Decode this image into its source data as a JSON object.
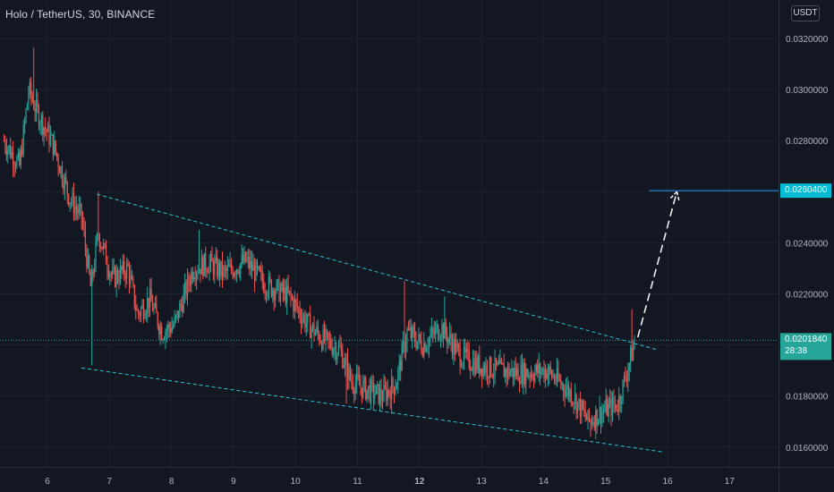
{
  "header": {
    "title": "Holo / TetherUS, 30, BINANCE"
  },
  "currency_button": "USDT",
  "colors": {
    "background": "#131722",
    "grid": "#1e222d",
    "axis_text": "#b2b5be",
    "up_candle": "#26a69a",
    "down_candle": "#ef5350",
    "trendline": "#26c6da",
    "target_line": "#2196f3",
    "target_label_bg": "#00bcd4",
    "current_label_bg": "#26a69a",
    "projection_arrow": "#ffffff"
  },
  "price_labels": {
    "target": "0.0260400",
    "current_price": "0.0201840",
    "countdown": "28:38"
  },
  "chart_data": {
    "type": "candlestick",
    "x_tick_labels": [
      "6",
      "7",
      "8",
      "9",
      "10",
      "11",
      "12",
      "13",
      "14",
      "15",
      "16",
      "17"
    ],
    "y_tick_labels": [
      "0.0160000",
      "0.0180000",
      "0.0200000",
      "0.0220000",
      "0.0240000",
      "0.0260000",
      "0.0280000",
      "0.0300000",
      "0.0320000"
    ],
    "ylim": [
      0.01485,
      0.03345
    ],
    "xlim": [
      5.27,
      17.95
    ],
    "grid": true,
    "price_path": [
      [
        5.3,
        0.028
      ],
      [
        5.55,
        0.027
      ],
      [
        5.7,
        0.03
      ],
      [
        5.82,
        0.0292
      ],
      [
        6.1,
        0.0278
      ],
      [
        6.35,
        0.0258
      ],
      [
        6.55,
        0.025
      ],
      [
        6.7,
        0.0222
      ],
      [
        6.82,
        0.0244
      ],
      [
        7.05,
        0.0226
      ],
      [
        7.3,
        0.023
      ],
      [
        7.45,
        0.0212
      ],
      [
        7.65,
        0.0218
      ],
      [
        7.85,
        0.0205
      ],
      [
        8.05,
        0.0208
      ],
      [
        8.35,
        0.023
      ],
      [
        8.6,
        0.0232
      ],
      [
        8.85,
        0.0228
      ],
      [
        9.2,
        0.0233
      ],
      [
        9.5,
        0.0224
      ],
      [
        9.9,
        0.0219
      ],
      [
        10.2,
        0.0208
      ],
      [
        10.45,
        0.0202
      ],
      [
        10.72,
        0.0198
      ],
      [
        10.9,
        0.0186
      ],
      [
        11.1,
        0.0183
      ],
      [
        11.4,
        0.018
      ],
      [
        11.62,
        0.0185
      ],
      [
        11.8,
        0.0205
      ],
      [
        12.05,
        0.02
      ],
      [
        12.35,
        0.0207
      ],
      [
        12.65,
        0.0196
      ],
      [
        12.95,
        0.0192
      ],
      [
        13.3,
        0.019
      ],
      [
        13.65,
        0.0189
      ],
      [
        14.05,
        0.019
      ],
      [
        14.45,
        0.0181
      ],
      [
        14.72,
        0.017
      ],
      [
        14.95,
        0.0174
      ],
      [
        15.2,
        0.0177
      ],
      [
        15.35,
        0.019
      ],
      [
        15.48,
        0.0202
      ]
    ],
    "wick_highs": [
      [
        5.78,
        0.03165
      ],
      [
        6.82,
        0.026
      ],
      [
        8.45,
        0.0245
      ],
      [
        11.76,
        0.0225
      ],
      [
        12.4,
        0.0219
      ],
      [
        15.42,
        0.0214
      ]
    ],
    "wick_lows": [
      [
        6.72,
        0.0192
      ],
      [
        10.82,
        0.0177
      ],
      [
        11.55,
        0.0173
      ],
      [
        14.75,
        0.0164
      ]
    ],
    "annotations": {
      "upper_trendline": [
        [
          6.8,
          0.0259
        ],
        [
          15.85,
          0.0198
        ]
      ],
      "lower_trendline": [
        [
          6.55,
          0.0191
        ],
        [
          15.95,
          0.0158
        ]
      ],
      "target_horizontal_line": {
        "from_x": 15.7,
        "price": 0.02604
      },
      "projection_arrow": [
        [
          15.52,
          0.0203
        ],
        [
          16.15,
          0.026
        ]
      ],
      "current_price_line": 0.020184
    }
  }
}
